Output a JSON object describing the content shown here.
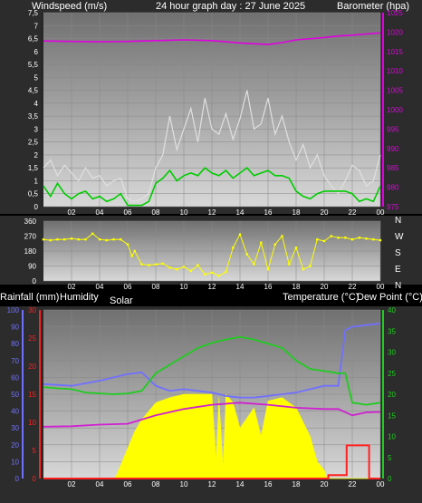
{
  "colors": {
    "background": "#000000",
    "panel_outer": "#303030",
    "plot_top": "#707070",
    "plot_bottom": "#d8d8d8",
    "grid": "#888888",
    "wind_avg": "#00cc00",
    "wind_gust": "#e0e0e0",
    "pressure": "#e000e0",
    "direction": "#ffff00",
    "humidity": "#7070ff",
    "rainfall": "#ff2020",
    "solar": "#ffff00",
    "temperature": "#20cc20",
    "dew_point": "#d020d0"
  },
  "x_tick_labels": [
    "02",
    "04",
    "06",
    "08",
    "10",
    "12",
    "14",
    "16",
    "18",
    "20",
    "22",
    "00"
  ],
  "chart_data": [
    {
      "type": "line",
      "title": "24 hour graph day : 27 June 2025",
      "y_left_label": "Windspeed (m/s)",
      "y_right_label": "Barometer (hpa)",
      "x_range_hours": [
        0,
        24
      ],
      "ylim_left": [
        0,
        7.5
      ],
      "ylim_right": [
        975,
        1025
      ],
      "y_left_ticks": [
        "0",
        "0,5",
        "1",
        "1,5",
        "2",
        "2,5",
        "3",
        "3,5",
        "4",
        "4,5",
        "5",
        "5,5",
        "6",
        "6,5",
        "7",
        "7,5"
      ],
      "y_right_ticks": [
        "975",
        "980",
        "985",
        "990",
        "995",
        "1000",
        "1005",
        "1010",
        "1015",
        "1020",
        "1025"
      ],
      "grid": true,
      "series": [
        {
          "key": "gust",
          "axis": "left",
          "x": [
            0,
            0.5,
            1,
            1.5,
            2,
            2.5,
            3,
            3.5,
            4,
            4.5,
            5,
            5.5,
            6,
            6.5,
            7,
            7.5,
            8,
            8.5,
            9,
            9.5,
            10,
            10.5,
            11,
            11.5,
            12,
            12.5,
            13,
            13.5,
            14,
            14.5,
            15,
            15.5,
            16,
            16.5,
            17,
            17.5,
            18,
            18.5,
            19,
            19.5,
            20,
            20.5,
            21,
            21.5,
            22,
            22.5,
            23,
            23.5,
            24
          ],
          "values": [
            1.5,
            1.8,
            1.2,
            1.6,
            1.3,
            1.0,
            1.5,
            1.1,
            1.2,
            0.8,
            1.0,
            1.1,
            0.3,
            0.2,
            0.3,
            0.5,
            1.5,
            2.0,
            3.5,
            2.2,
            3.0,
            3.8,
            2.5,
            4.2,
            3.0,
            2.8,
            3.6,
            2.6,
            3.4,
            4.5,
            3.0,
            3.2,
            4.2,
            2.8,
            3.5,
            2.5,
            1.8,
            2.4,
            1.5,
            2.0,
            1.2,
            0.8,
            0.5,
            1.0,
            1.6,
            1.4,
            0.8,
            1.0,
            2.0
          ]
        },
        {
          "key": "avg",
          "axis": "left",
          "x": [
            0,
            0.5,
            1,
            1.5,
            2,
            2.5,
            3,
            3.5,
            4,
            4.5,
            5,
            5.5,
            6,
            6.5,
            7,
            7.5,
            8,
            8.5,
            9,
            9.5,
            10,
            10.5,
            11,
            11.5,
            12,
            12.5,
            13,
            13.5,
            14,
            14.5,
            15,
            15.5,
            16,
            16.5,
            17,
            17.5,
            18,
            18.5,
            19,
            19.5,
            20,
            20.5,
            21,
            21.5,
            22,
            22.5,
            23,
            23.5,
            24
          ],
          "values": [
            0.8,
            0.4,
            0.9,
            0.5,
            0.3,
            0.5,
            0.6,
            0.3,
            0.4,
            0.2,
            0.3,
            0.5,
            0.05,
            0.05,
            0.05,
            0.2,
            0.9,
            1.1,
            1.4,
            1.0,
            1.2,
            1.3,
            1.2,
            1.5,
            1.3,
            1.2,
            1.4,
            1.1,
            1.3,
            1.5,
            1.2,
            1.3,
            1.4,
            1.2,
            1.2,
            1.1,
            0.6,
            0.4,
            0.3,
            0.5,
            0.6,
            0.6,
            0.6,
            0.6,
            0.5,
            0.2,
            0.3,
            0.2,
            0.8
          ]
        },
        {
          "key": "pressure",
          "axis": "right",
          "x": [
            0,
            2,
            4,
            6,
            8,
            10,
            12,
            14,
            16,
            17,
            18,
            20,
            21,
            22,
            23,
            24
          ],
          "values": [
            1017.7,
            1017.6,
            1017.5,
            1017.6,
            1017.8,
            1018,
            1017.8,
            1017.2,
            1016.8,
            1017.3,
            1018,
            1018.6,
            1019,
            1019.2,
            1019.5,
            1019.8
          ]
        }
      ]
    },
    {
      "type": "scatter",
      "title": "",
      "ylim": [
        0,
        360
      ],
      "y_ticks": [
        "0",
        "90",
        "180",
        "270",
        "360"
      ],
      "direction_labels": [
        "N",
        "W",
        "S",
        "E",
        "N"
      ],
      "grid": true,
      "series": [
        {
          "key": "direction",
          "x": [
            0,
            0.5,
            1,
            1.5,
            2,
            2.5,
            3,
            3.5,
            4,
            4.5,
            5,
            5.5,
            6,
            6.3,
            6.5,
            7,
            7.5,
            8,
            8.5,
            9,
            9.5,
            10,
            10.5,
            11,
            11.5,
            12,
            12.5,
            13,
            13.5,
            14,
            14.5,
            15,
            15.5,
            16,
            16.5,
            17,
            17.5,
            18,
            18.5,
            19,
            19.5,
            20,
            20.5,
            21,
            21.5,
            22,
            22.5,
            23,
            23.5,
            24
          ],
          "values": [
            250,
            245,
            250,
            250,
            255,
            250,
            250,
            285,
            250,
            245,
            250,
            250,
            220,
            150,
            180,
            100,
            95,
            100,
            105,
            80,
            70,
            85,
            60,
            95,
            40,
            50,
            30,
            55,
            200,
            280,
            160,
            100,
            230,
            70,
            220,
            270,
            100,
            200,
            70,
            90,
            250,
            240,
            270,
            260,
            260,
            250,
            260,
            255,
            250,
            245
          ]
        }
      ]
    },
    {
      "type": "line",
      "title": "",
      "labels": [
        "Rainfall (mm)",
        "Humidity",
        "Solar",
        "Temperature (°C)",
        "Dew Point (°C)"
      ],
      "humidity_ticks": [
        "0",
        "10",
        "20",
        "30",
        "40",
        "50",
        "60",
        "70",
        "80",
        "90",
        "100"
      ],
      "rain_ticks": [
        "0",
        "5",
        "10",
        "15",
        "20",
        "25",
        "30"
      ],
      "temp_ticks": [
        "0",
        "5",
        "10",
        "15",
        "20",
        "25",
        "30",
        "35",
        "40"
      ],
      "ylim_humidity": [
        0,
        100
      ],
      "ylim_rain": [
        0,
        30
      ],
      "ylim_temp": [
        0,
        40
      ],
      "grid": true,
      "series": [
        {
          "key": "solar",
          "axis": "humidity",
          "x": [
            0,
            5,
            5.2,
            5.5,
            6,
            6.5,
            7,
            7.5,
            8,
            9,
            10,
            11,
            12,
            12.3,
            12.5,
            12.8,
            13,
            13.5,
            14,
            15,
            15.5,
            16,
            17,
            18,
            19,
            19.5,
            20,
            20.2,
            24
          ],
          "values": [
            0,
            0,
            2,
            8,
            18,
            28,
            35,
            40,
            45,
            48,
            50,
            50,
            50,
            10,
            48,
            5,
            50,
            45,
            30,
            42,
            25,
            46,
            48,
            42,
            25,
            10,
            5,
            0,
            0
          ]
        },
        {
          "key": "humidity",
          "axis": "humidity",
          "x": [
            0,
            2,
            4,
            6,
            7,
            8,
            9,
            10,
            11,
            12,
            13,
            14,
            15,
            16,
            17,
            18,
            19,
            20,
            20.5,
            21,
            21.5,
            22,
            23,
            24
          ],
          "values": [
            56,
            55,
            58,
            62,
            63,
            55,
            52,
            53,
            52,
            51,
            49,
            48,
            48,
            49,
            50,
            51,
            53,
            55,
            55,
            55,
            88,
            90,
            91,
            92
          ]
        },
        {
          "key": "temperature",
          "axis": "temp",
          "x": [
            0,
            1,
            2,
            3,
            4,
            5,
            6,
            7,
            8,
            9,
            10,
            11,
            12,
            13,
            14,
            15,
            16,
            17,
            18,
            19,
            20,
            21,
            21.5,
            22,
            23,
            24
          ],
          "values": [
            21.7,
            21.4,
            21.2,
            20.4,
            20.2,
            20,
            20.2,
            20.8,
            25,
            27,
            29,
            31,
            32.2,
            33,
            33.6,
            33,
            32,
            31,
            28,
            26,
            25.5,
            25,
            25,
            18,
            17.5,
            18
          ]
        },
        {
          "key": "dew_point",
          "axis": "temp",
          "x": [
            0,
            2,
            4,
            6,
            8,
            10,
            12,
            14,
            16,
            18,
            20,
            21,
            22,
            23,
            24
          ],
          "values": [
            12.3,
            12.4,
            12.8,
            13,
            15,
            16.5,
            17.5,
            18,
            17.5,
            16.8,
            16.5,
            16.5,
            15,
            15.7,
            15.8
          ]
        },
        {
          "key": "rain",
          "axis": "rain",
          "x": [
            0,
            20.3,
            20.3,
            21.6,
            21.6,
            23.2,
            23.2,
            24
          ],
          "values": [
            0,
            0,
            0.6,
            0.6,
            5.9,
            5.9,
            0,
            0
          ]
        }
      ]
    }
  ]
}
